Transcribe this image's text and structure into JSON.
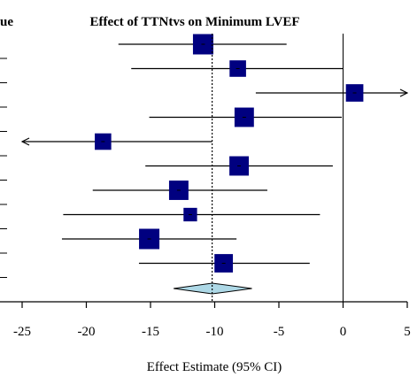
{
  "chart_data": {
    "type": "forest",
    "title": "Effect of TTNtvs on Minimum LVEF",
    "left_header_fragment": "ue",
    "xlabel": "Effect Estimate (95% CI)",
    "xlim": [
      -25,
      5
    ],
    "xticks": [
      -25,
      -20,
      -15,
      -10,
      -5,
      0,
      5
    ],
    "null_line": 0,
    "summary_line": -10.2,
    "studies": [
      {
        "est": -10.9,
        "lo": -17.5,
        "hi": -4.4,
        "weight": 1.0
      },
      {
        "est": -8.2,
        "lo": -16.5,
        "hi": 0.0,
        "weight": 0.8
      },
      {
        "est": 0.9,
        "lo": -6.8,
        "hi": 5.0,
        "weight": 0.85,
        "arrow_right": true
      },
      {
        "est": -7.7,
        "lo": -15.1,
        "hi": -0.1,
        "weight": 0.95
      },
      {
        "est": -18.7,
        "lo": -25.0,
        "hi": -10.2,
        "weight": 0.8,
        "arrow_left": true
      },
      {
        "est": -8.1,
        "lo": -15.4,
        "hi": -0.8,
        "weight": 0.95
      },
      {
        "est": -12.8,
        "lo": -19.5,
        "hi": -5.9,
        "weight": 0.95
      },
      {
        "est": -11.9,
        "lo": -21.8,
        "hi": -1.8,
        "weight": 0.65
      },
      {
        "est": -15.1,
        "lo": -21.9,
        "hi": -8.3,
        "weight": 1.0
      },
      {
        "est": -9.3,
        "lo": -15.9,
        "hi": -2.6,
        "weight": 0.9
      }
    ],
    "summary": {
      "est": -10.2,
      "lo": -13.2,
      "hi": -7.1
    },
    "colors": {
      "box": "#000080",
      "diamond_fill": "#add8e6",
      "line": "#000000"
    },
    "grid": false
  }
}
